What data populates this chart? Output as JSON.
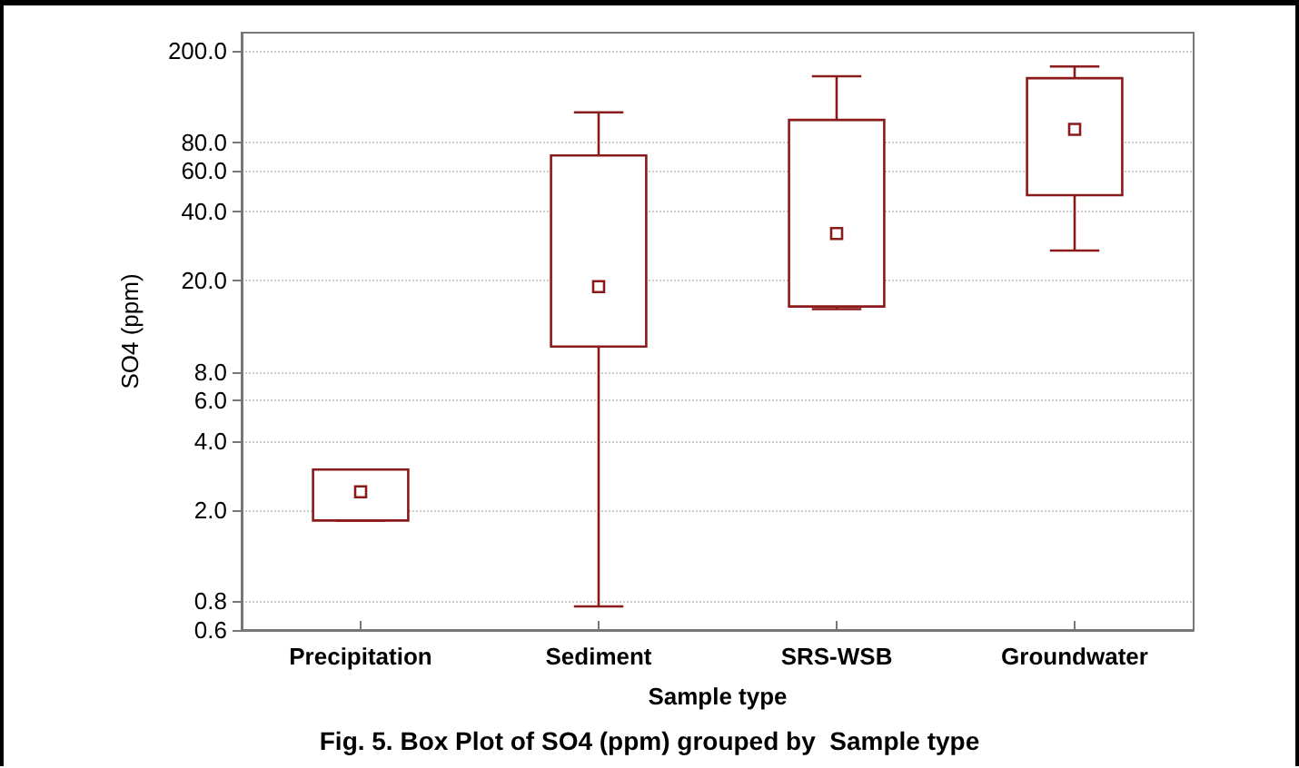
{
  "chart_data": {
    "type": "box",
    "xlabel": "Sample type",
    "ylabel": "SO4 (ppm)",
    "annotations": [
      "Fig. 5. Box Plot of SO4 (ppm) grouped by  Sample type"
    ],
    "categories": [
      "Precipitation",
      "Sediment",
      "SRS-WSB",
      "Groundwater"
    ],
    "series": [
      {
        "color": "#8b1a1a",
        "boxes": [
          {
            "low": 1.8,
            "q1": 1.8,
            "median": 2.4,
            "q3": 3.0,
            "high": 3.0
          },
          {
            "low": 0.76,
            "q1": 10.3,
            "median": 18.8,
            "q3": 70,
            "high": 108
          },
          {
            "low": 15.0,
            "q1": 15.4,
            "median": 32,
            "q3": 100,
            "high": 155
          },
          {
            "low": 27,
            "q1": 47,
            "median": 91,
            "q3": 152,
            "high": 171
          }
        ]
      }
    ],
    "log": "y",
    "ylim": [
      0.6,
      240
    ],
    "yticks": [
      {
        "value": 0.6,
        "label": "0.6"
      },
      {
        "value": 0.8,
        "label": "0.8"
      },
      {
        "value": 2,
        "label": "2.0"
      },
      {
        "value": 4,
        "label": "4.0"
      },
      {
        "value": 6,
        "label": "6.0"
      },
      {
        "value": 8,
        "label": "8.0"
      },
      {
        "value": 20,
        "label": "20.0"
      },
      {
        "value": 40,
        "label": "40.0"
      },
      {
        "value": 60,
        "label": "60.0"
      },
      {
        "value": 80,
        "label": "80.0"
      },
      {
        "value": 200,
        "label": "200.0"
      }
    ],
    "grid": "y",
    "marker": "square"
  }
}
